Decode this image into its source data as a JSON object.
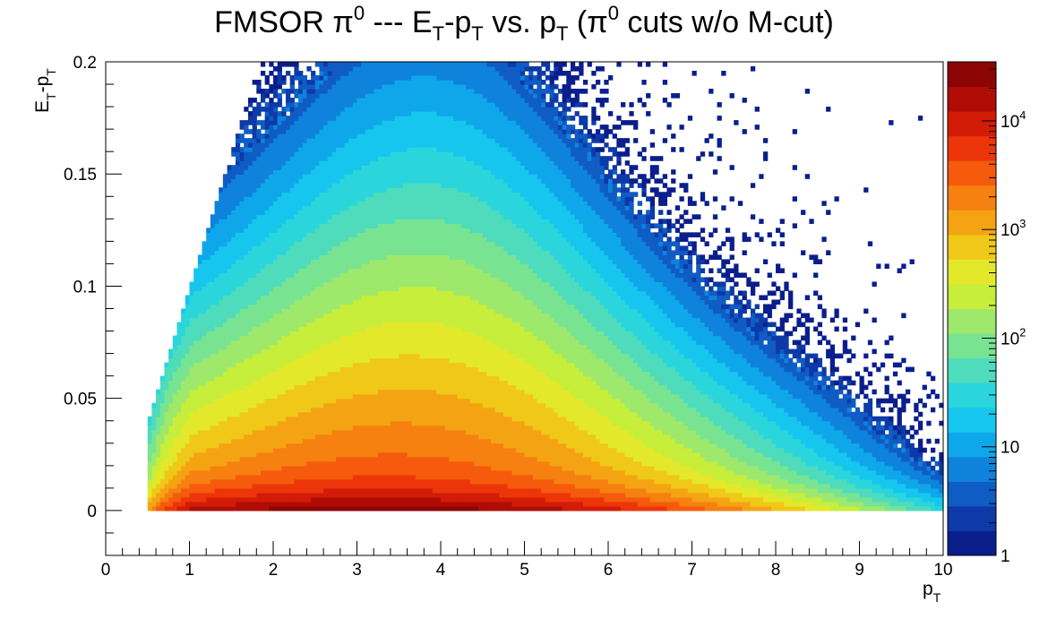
{
  "chart_data": {
    "type": "heatmap",
    "title": {
      "prefix": "FMSOR π",
      "sup1": "0",
      "mid1": " --- E",
      "sub1": "T",
      "mid2": "-p",
      "sub2": "T",
      "mid3": " vs. p",
      "sub3": "T",
      "mid4": " (π",
      "sup2": "0",
      "suffix": " cuts w/o M-cut)"
    },
    "xlabel": {
      "main": "p",
      "sub": "T"
    },
    "ylabel": {
      "main1": "E",
      "sub1": "T",
      "main2": "-p",
      "sub2": "T"
    },
    "xlim": [
      0,
      10
    ],
    "ylim": [
      -0.02,
      0.2
    ],
    "x_ticks": [
      "0",
      "1",
      "2",
      "3",
      "4",
      "5",
      "6",
      "7",
      "8",
      "9",
      "10"
    ],
    "y_ticks": [
      {
        "value": 0,
        "label": "0"
      },
      {
        "value": 0.05,
        "label": "0.05"
      },
      {
        "value": 0.1,
        "label": "0.1"
      },
      {
        "value": 0.15,
        "label": "0.15"
      },
      {
        "value": 0.2,
        "label": "0.2"
      }
    ],
    "z_scale": "log",
    "zlim": [
      1,
      35000
    ],
    "z_ticks": [
      {
        "value": 1,
        "base": "1",
        "exp": ""
      },
      {
        "value": 10,
        "base": "10",
        "exp": ""
      },
      {
        "value": 100,
        "base": "10",
        "exp": "2"
      },
      {
        "value": 1000,
        "base": "10",
        "exp": "3"
      },
      {
        "value": 10000,
        "base": "10",
        "exp": "4"
      }
    ],
    "density_model": {
      "description": "approximate counts per bin; peak near pT≈3, ET-pT≈0.003",
      "x_bin_width": 0.05,
      "y_bin_width": 0.002,
      "lower_edge_pt": 0.5,
      "peak_counts": 30000
    },
    "palette": [
      "#0a1e8c",
      "#0d3aa8",
      "#0f5cc4",
      "#0f82dc",
      "#0ea8ea",
      "#16c6ee",
      "#2ad6dc",
      "#4edcbc",
      "#78e492",
      "#9ee86c",
      "#c6ee3a",
      "#e4e82a",
      "#f0c818",
      "#f4a412",
      "#f68010",
      "#f65a0c",
      "#ec360a",
      "#d21c08",
      "#b00c06",
      "#8c0404"
    ],
    "grid": false
  }
}
